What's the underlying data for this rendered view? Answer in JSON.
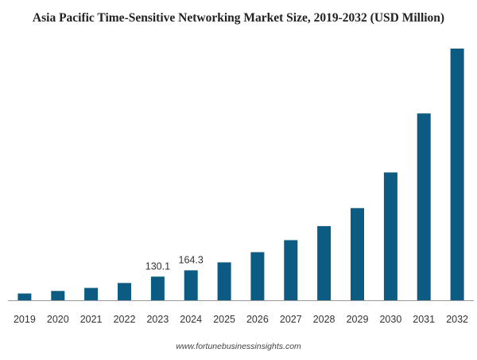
{
  "chart_data": {
    "type": "bar",
    "title": "Asia Pacific Time-Sensitive Networking Market Size, 2019-2032 (USD Million)",
    "xlabel": "",
    "ylabel": "",
    "categories": [
      "2019",
      "2020",
      "2021",
      "2022",
      "2023",
      "2024",
      "2025",
      "2026",
      "2027",
      "2028",
      "2029",
      "2030",
      "2031",
      "2032"
    ],
    "values": [
      37,
      51,
      68,
      95,
      130.1,
      164.3,
      208,
      264,
      330,
      407,
      506,
      702,
      1026,
      1382
    ],
    "data_labels": [
      {
        "category": "2023",
        "text": "130.1"
      },
      {
        "category": "2024",
        "text": "164.3"
      }
    ],
    "ylim": [
      0,
      1382
    ],
    "grid": false,
    "bar_color": "#0b5b83",
    "axis_color": "#9a9a9a"
  },
  "footer": {
    "source": "www.fortunebusinessinsights.com"
  }
}
